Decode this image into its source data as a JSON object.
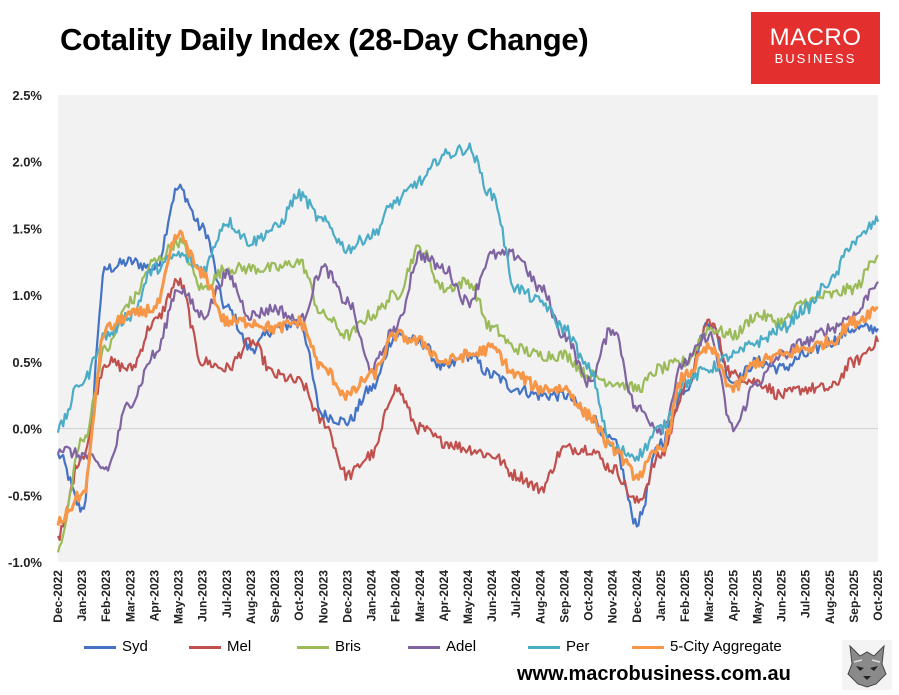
{
  "title": "Cotality Daily Index (28-Day Change)",
  "logo": {
    "line1": "MACRO",
    "line2": "BUSINESS",
    "bg_color": "#e3302f"
  },
  "website": "www.macrobusiness.com.au",
  "chart_data": {
    "type": "line",
    "title": "Cotality Daily Index (28-Day Change)",
    "xlabel": "",
    "ylabel": "",
    "ylim": [
      -1.0,
      2.5
    ],
    "yticks": [
      "-1.0%",
      "-0.5%",
      "0.0%",
      "0.5%",
      "1.0%",
      "1.5%",
      "2.0%",
      "2.5%"
    ],
    "grid": false,
    "legend_position": "bottom",
    "x": [
      "Dec-2022",
      "Jan-2023",
      "Feb-2023",
      "Mar-2023",
      "Apr-2023",
      "May-2023",
      "Jun-2023",
      "Jul-2023",
      "Aug-2023",
      "Sep-2023",
      "Oct-2023",
      "Nov-2023",
      "Dec-2023",
      "Jan-2024",
      "Feb-2024",
      "Mar-2024",
      "Apr-2024",
      "May-2024",
      "Jun-2024",
      "Jul-2024",
      "Aug-2024",
      "Sep-2024",
      "Oct-2024",
      "Nov-2024",
      "Dec-2024",
      "Jan-2025",
      "Feb-2025",
      "Mar-2025",
      "Apr-2025",
      "May-2025",
      "Jun-2025",
      "Jul-2025",
      "Aug-2025",
      "Sep-2025",
      "Oct-2025"
    ],
    "series": [
      {
        "name": "Syd",
        "color": "#4472c4",
        "values": [
          -0.2,
          -0.6,
          1.2,
          1.25,
          1.2,
          1.8,
          1.5,
          0.9,
          0.6,
          0.75,
          0.8,
          0.1,
          0.05,
          0.3,
          0.7,
          0.65,
          0.45,
          0.55,
          0.4,
          0.3,
          0.25,
          0.25,
          0.1,
          -0.1,
          -0.7,
          -0.1,
          0.3,
          0.8,
          0.35,
          0.5,
          0.45,
          0.55,
          0.65,
          0.75,
          0.75
        ]
      },
      {
        "name": "Mel",
        "color": "#c0504d",
        "values": [
          -0.8,
          -0.2,
          0.5,
          0.45,
          0.8,
          1.1,
          0.5,
          0.45,
          0.65,
          0.4,
          0.35,
          0.05,
          -0.35,
          -0.2,
          0.3,
          0.0,
          -0.1,
          -0.15,
          -0.2,
          -0.35,
          -0.45,
          -0.15,
          -0.15,
          -0.3,
          -0.55,
          -0.2,
          0.3,
          0.8,
          0.4,
          0.35,
          0.25,
          0.3,
          0.3,
          0.5,
          0.65
        ]
      },
      {
        "name": "Bris",
        "color": "#9bbb59",
        "values": [
          -0.9,
          -0.1,
          0.6,
          0.95,
          1.25,
          1.4,
          1.05,
          1.2,
          1.2,
          1.2,
          1.25,
          0.85,
          0.7,
          0.85,
          1.0,
          1.35,
          1.05,
          1.1,
          0.75,
          0.6,
          0.55,
          0.55,
          0.4,
          0.35,
          0.3,
          0.45,
          0.5,
          0.75,
          0.7,
          0.85,
          0.8,
          0.95,
          1.0,
          1.05,
          1.3
        ]
      },
      {
        "name": "Adel",
        "color": "#8064a2",
        "values": [
          -0.15,
          -0.2,
          -0.3,
          0.2,
          0.55,
          1.05,
          0.85,
          1.15,
          0.85,
          0.9,
          0.8,
          1.2,
          0.95,
          0.45,
          0.75,
          1.3,
          1.2,
          0.95,
          1.3,
          1.3,
          1.05,
          0.7,
          0.35,
          0.75,
          0.15,
          0.0,
          0.5,
          0.7,
          0.0,
          0.35,
          0.55,
          0.65,
          0.75,
          0.85,
          1.1
        ]
      },
      {
        "name": "Per",
        "color": "#4bacc6",
        "values": [
          0.0,
          0.35,
          0.7,
          0.85,
          1.2,
          1.3,
          1.2,
          1.55,
          1.4,
          1.5,
          1.75,
          1.55,
          1.35,
          1.45,
          1.7,
          1.85,
          2.05,
          2.1,
          1.75,
          1.05,
          0.95,
          0.75,
          0.45,
          -0.15,
          -0.2,
          0.0,
          0.35,
          0.45,
          0.55,
          0.65,
          0.75,
          0.9,
          1.1,
          1.4,
          1.55
        ]
      },
      {
        "name": "5-City Aggregate",
        "color": "#f79646",
        "values": [
          -0.7,
          -0.5,
          0.75,
          0.85,
          0.9,
          1.45,
          1.15,
          0.8,
          0.8,
          0.75,
          0.8,
          0.45,
          0.25,
          0.4,
          0.7,
          0.65,
          0.5,
          0.55,
          0.6,
          0.4,
          0.3,
          0.3,
          0.1,
          -0.15,
          -0.35,
          -0.15,
          0.4,
          0.6,
          0.3,
          0.5,
          0.55,
          0.6,
          0.65,
          0.8,
          0.9
        ]
      }
    ]
  }
}
